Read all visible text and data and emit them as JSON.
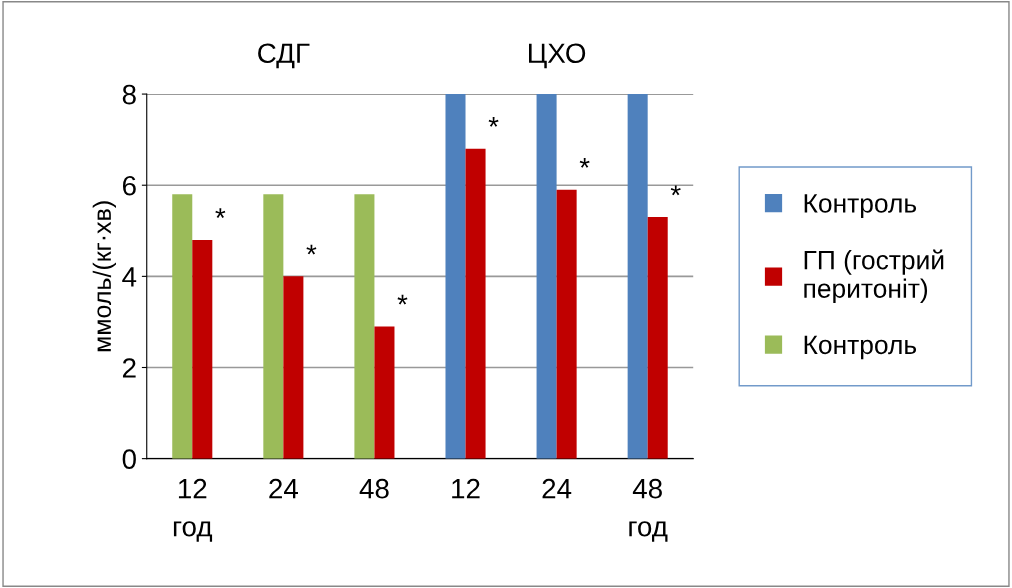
{
  "chart_data": {
    "type": "bar",
    "ylabel": "ммоль/(кг·хв)",
    "categories": [
      "12\nгод",
      "24",
      "48",
      "12",
      "24",
      "48\nгод"
    ],
    "series": [
      {
        "name": "Контроль",
        "color": "#4f81bd",
        "values": [
          null,
          null,
          null,
          8.0,
          8.0,
          8.0
        ]
      },
      {
        "name": "ГП (гострий\nперитоніт)",
        "color": "#c00000",
        "values": [
          4.8,
          4.0,
          2.9,
          6.8,
          5.9,
          5.3
        ],
        "value_labels": [
          "*",
          "*",
          "*",
          "*",
          "*",
          "*"
        ]
      },
      {
        "name": "Контроль",
        "color": "#9bbb59",
        "values": [
          5.8,
          5.8,
          5.8,
          null,
          null,
          null
        ]
      }
    ],
    "annotations": [
      "СДГ",
      "ЦХО"
    ],
    "ylim": [
      0,
      8
    ],
    "yticks": [
      0,
      2,
      4,
      6,
      8
    ],
    "grid": "y",
    "legend": "right"
  }
}
